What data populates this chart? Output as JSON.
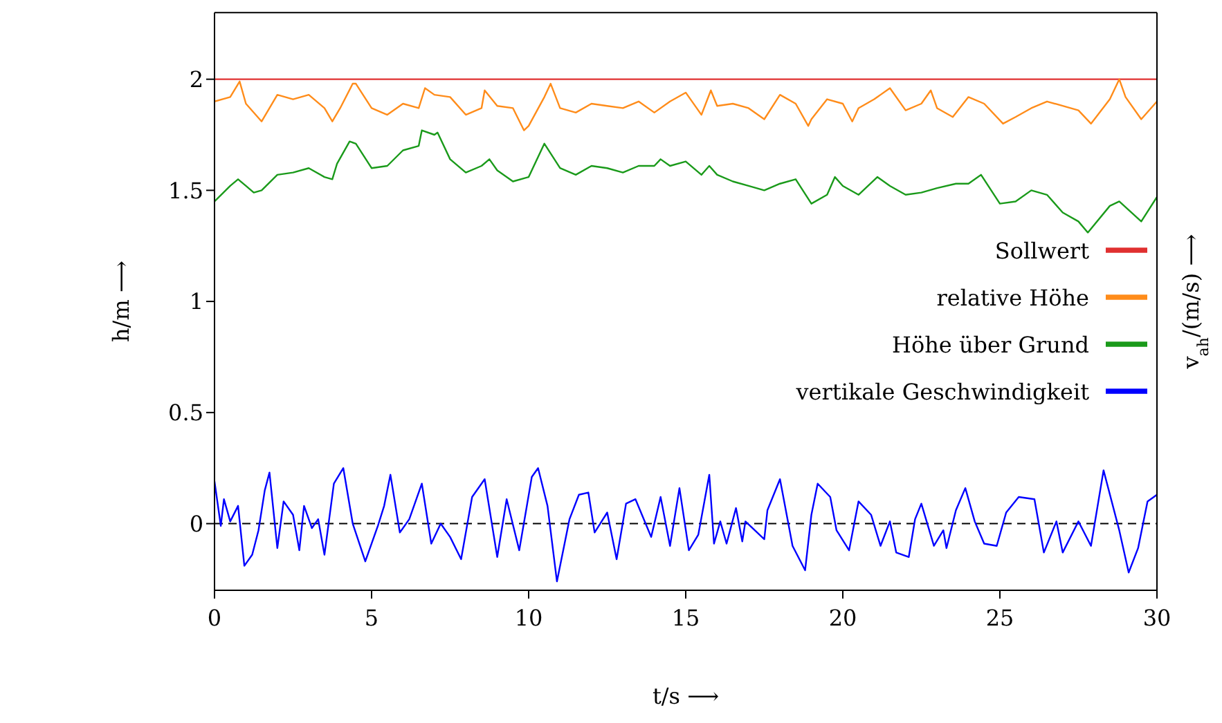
{
  "chart_data": {
    "type": "line",
    "xlabel": "t/s ⟶",
    "ylabel": "h/m ⟶",
    "y2label": "v$_{ah}$/(m/s) ⟶",
    "xlim": [
      0,
      30
    ],
    "xticks": [
      0,
      5,
      10,
      15,
      20,
      25,
      30
    ],
    "ylim": [
      -0.3,
      2.3
    ],
    "yticks": [
      0,
      0.5,
      1,
      1.5,
      2
    ],
    "grid": false,
    "legend": "right",
    "marker": "none",
    "line_style": "solid",
    "ref_lines": [
      {
        "axis": "y",
        "value": 0,
        "color": "#000000",
        "line_style": "dashed"
      }
    ],
    "series": [
      {
        "name": "Sollwert",
        "color": "#e03030",
        "x": [
          0,
          30
        ],
        "values": [
          2,
          2
        ]
      },
      {
        "name": "relative Höhe",
        "color": "#ff8c1a",
        "x": [
          0,
          0.5,
          0.8,
          1,
          1.5,
          2,
          2.5,
          3,
          3.5,
          3.75,
          4,
          4.4,
          4.5,
          5,
          5.5,
          6,
          6.5,
          6.7,
          7,
          7.5,
          8,
          8.5,
          8.6,
          9,
          9.5,
          9.85,
          10,
          10.5,
          10.7,
          11,
          11.5,
          12,
          12.5,
          13,
          13.5,
          14,
          14.5,
          15,
          15.5,
          15.8,
          16,
          16.5,
          17,
          17.5,
          18,
          18.5,
          18.9,
          19,
          19.5,
          20,
          20.3,
          20.5,
          21,
          21.5,
          22,
          22.5,
          22.8,
          23,
          23.5,
          24,
          24.5,
          25.1,
          25.5,
          26,
          26.5,
          27,
          27.5,
          27.9,
          28.5,
          28.8,
          29,
          29.5,
          30
        ],
        "values": [
          1.9,
          1.92,
          1.99,
          1.89,
          1.81,
          1.93,
          1.91,
          1.93,
          1.87,
          1.81,
          1.87,
          1.98,
          1.98,
          1.87,
          1.84,
          1.89,
          1.87,
          1.96,
          1.93,
          1.92,
          1.84,
          1.87,
          1.95,
          1.88,
          1.87,
          1.77,
          1.79,
          1.92,
          1.98,
          1.87,
          1.85,
          1.89,
          1.88,
          1.87,
          1.9,
          1.85,
          1.9,
          1.94,
          1.84,
          1.95,
          1.88,
          1.89,
          1.87,
          1.82,
          1.93,
          1.89,
          1.79,
          1.82,
          1.91,
          1.89,
          1.81,
          1.87,
          1.91,
          1.96,
          1.86,
          1.89,
          1.95,
          1.87,
          1.83,
          1.92,
          1.89,
          1.8,
          1.83,
          1.87,
          1.9,
          1.88,
          1.86,
          1.8,
          1.91,
          2.0,
          1.92,
          1.82,
          1.9
        ]
      },
      {
        "name": "Höhe über Grund",
        "color": "#1a9a1a",
        "x": [
          0,
          0.5,
          0.75,
          1,
          1.25,
          1.5,
          2,
          2.5,
          3,
          3.5,
          3.75,
          3.9,
          4.3,
          4.5,
          5,
          5.5,
          6,
          6.5,
          6.6,
          7,
          7.1,
          7.5,
          8,
          8.5,
          8.75,
          9,
          9.5,
          10,
          10.5,
          11,
          11.5,
          12,
          12.5,
          13,
          13.5,
          14,
          14.2,
          14.5,
          15,
          15.5,
          15.75,
          16,
          16.5,
          17,
          17.5,
          18,
          18.5,
          19,
          19.5,
          19.75,
          20,
          20.5,
          21.1,
          21.5,
          22,
          22.5,
          23,
          23.6,
          24,
          24.4,
          25,
          25.5,
          26,
          26.5,
          27,
          27.5,
          27.8,
          28.5,
          28.8,
          29.5,
          30
        ],
        "values": [
          1.45,
          1.52,
          1.55,
          1.52,
          1.49,
          1.5,
          1.57,
          1.58,
          1.6,
          1.56,
          1.55,
          1.62,
          1.72,
          1.71,
          1.6,
          1.61,
          1.68,
          1.7,
          1.77,
          1.75,
          1.76,
          1.64,
          1.58,
          1.61,
          1.64,
          1.59,
          1.54,
          1.56,
          1.71,
          1.6,
          1.57,
          1.61,
          1.6,
          1.58,
          1.61,
          1.61,
          1.64,
          1.61,
          1.63,
          1.57,
          1.61,
          1.57,
          1.54,
          1.52,
          1.5,
          1.53,
          1.55,
          1.44,
          1.48,
          1.56,
          1.52,
          1.48,
          1.56,
          1.52,
          1.48,
          1.49,
          1.51,
          1.53,
          1.53,
          1.57,
          1.44,
          1.45,
          1.5,
          1.48,
          1.4,
          1.36,
          1.31,
          1.43,
          1.45,
          1.36,
          1.47
        ]
      },
      {
        "name": "vertikale Geschwindigkeit",
        "color": "#0000ff",
        "x": [
          0,
          0.2,
          0.3,
          0.5,
          0.75,
          0.95,
          1.2,
          1.4,
          1.6,
          1.75,
          2,
          2.2,
          2.5,
          2.7,
          2.85,
          3.1,
          3.3,
          3.5,
          3.8,
          4.1,
          4.4,
          4.8,
          5.2,
          5.4,
          5.6,
          5.9,
          6.2,
          6.6,
          6.9,
          7.2,
          7.5,
          7.85,
          8.2,
          8.6,
          9,
          9.3,
          9.7,
          10.1,
          10.3,
          10.6,
          10.9,
          11.3,
          11.6,
          11.9,
          12.1,
          12.5,
          12.8,
          13.1,
          13.4,
          13.9,
          14.2,
          14.5,
          14.8,
          15.1,
          15.4,
          15.75,
          15.9,
          16.1,
          16.3,
          16.6,
          16.8,
          16.9,
          17.5,
          17.6,
          18,
          18.4,
          18.8,
          19,
          19.2,
          19.6,
          19.8,
          20.2,
          20.5,
          20.9,
          21.2,
          21.5,
          21.7,
          22.1,
          22.3,
          22.5,
          22.9,
          23.2,
          23.3,
          23.6,
          23.9,
          24.2,
          24.5,
          24.9,
          25.2,
          25.6,
          26.1,
          26.4,
          26.8,
          27,
          27.5,
          27.9,
          28.3,
          28.8,
          29.1,
          29.4,
          29.7,
          30
        ],
        "values": [
          0.19,
          -0.01,
          0.11,
          0.01,
          0.08,
          -0.19,
          -0.14,
          -0.03,
          0.15,
          0.23,
          -0.11,
          0.1,
          0.04,
          -0.12,
          0.08,
          -0.02,
          0.02,
          -0.14,
          0.18,
          0.25,
          0.0,
          -0.17,
          -0.01,
          0.08,
          0.22,
          -0.04,
          0.02,
          0.18,
          -0.09,
          0.0,
          -0.06,
          -0.16,
          0.12,
          0.2,
          -0.15,
          0.11,
          -0.12,
          0.21,
          0.25,
          0.08,
          -0.26,
          0.02,
          0.13,
          0.14,
          -0.04,
          0.05,
          -0.16,
          0.09,
          0.11,
          -0.06,
          0.12,
          -0.1,
          0.16,
          -0.12,
          -0.05,
          0.22,
          -0.09,
          0.01,
          -0.09,
          0.07,
          -0.08,
          0.01,
          -0.07,
          0.06,
          0.2,
          -0.1,
          -0.21,
          0.04,
          0.18,
          0.12,
          -0.03,
          -0.12,
          0.1,
          0.04,
          -0.1,
          0.01,
          -0.13,
          -0.15,
          0.02,
          0.09,
          -0.1,
          -0.03,
          -0.11,
          0.06,
          0.16,
          0.01,
          -0.09,
          -0.1,
          0.05,
          0.12,
          0.11,
          -0.13,
          0.01,
          -0.13,
          0.01,
          -0.1,
          0.24,
          -0.03,
          -0.22,
          -0.11,
          0.1,
          0.13
        ]
      }
    ]
  }
}
